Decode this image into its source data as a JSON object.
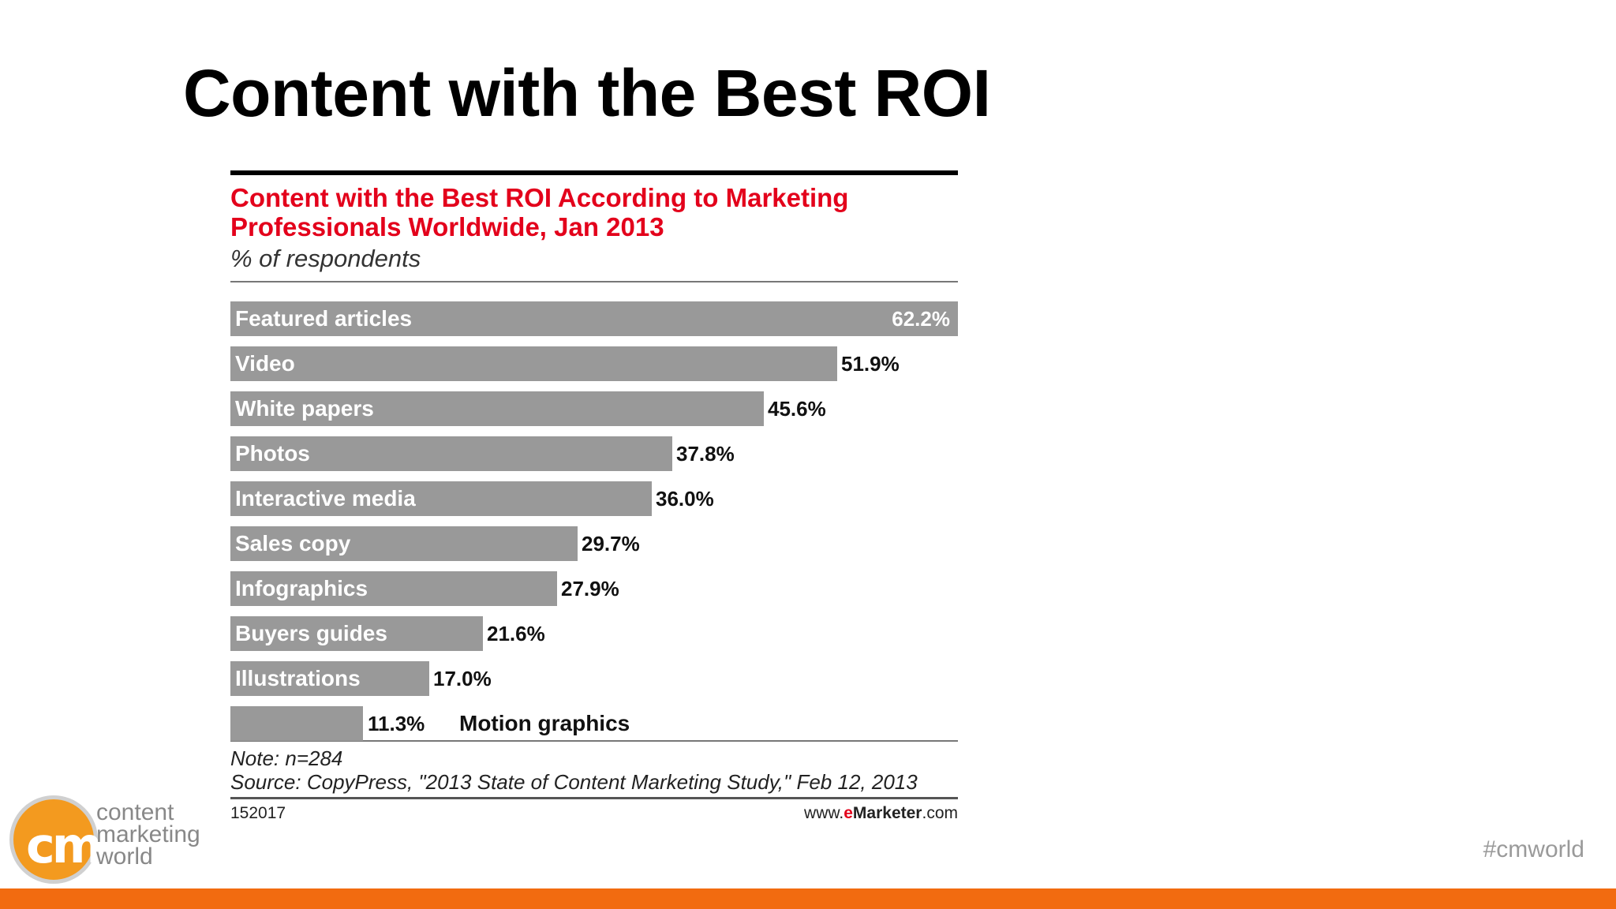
{
  "slide": {
    "title": "Content with the Best ROI",
    "hashtag": "#cmworld",
    "logo": {
      "icon": "cmw-logo-icon",
      "mark": "cm",
      "line1": "content",
      "line2": "marketing",
      "line3": "world"
    },
    "accent_color": "#f26b10"
  },
  "chart_data": {
    "type": "bar",
    "orientation": "horizontal",
    "title": "Content with the Best ROI According to Marketing Professionals Worldwide, Jan 2013",
    "subtitle": "% of respondents",
    "categories": [
      "Featured articles",
      "Video",
      "White papers",
      "Photos",
      "Interactive media",
      "Sales copy",
      "Infographics",
      "Buyers guides",
      "Illustrations",
      "Motion graphics"
    ],
    "values": [
      62.2,
      51.9,
      45.6,
      37.8,
      36.0,
      29.7,
      27.9,
      21.6,
      17.0,
      11.3
    ],
    "value_labels": [
      "62.2%",
      "51.9%",
      "45.6%",
      "37.8%",
      "36.0%",
      "29.7%",
      "27.9%",
      "21.6%",
      "17.0%",
      "11.3%"
    ],
    "xlim": [
      0,
      62.2
    ],
    "bar_color": "#999999",
    "title_color": "#e3001b",
    "grid": false,
    "note": "Note: n=284",
    "source": "Source: CopyPress, \"2013 State of Content Marketing Study,\" Feb 12, 2013",
    "chart_id": "152017",
    "brand": {
      "prefix": "www.",
      "e": "e",
      "name": "Marketer",
      "suffix": ".com"
    }
  }
}
